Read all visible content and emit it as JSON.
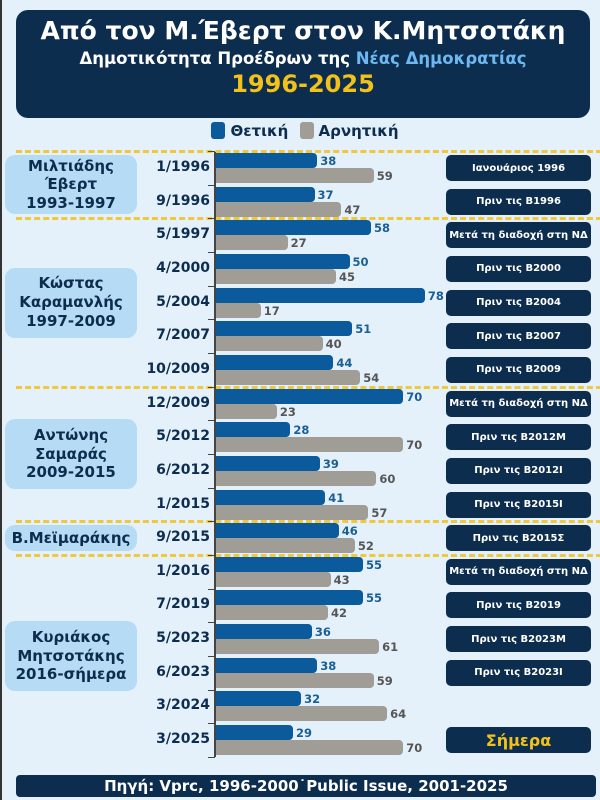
{
  "header": {
    "title": "Από τον Μ.Έβερτ στον Κ.Μητσοτάκη",
    "subtitle_prefix": "Δημοτικότητα Προέδρων της ",
    "subtitle_highlight": "Νέας Δημοκρατίας",
    "years": "1996-2025"
  },
  "footer": {
    "source": "Πηγή: Vprc, 1996-2000˙Public Issue, 2001-2025"
  },
  "colors": {
    "positive": "#0a5a9c",
    "negative": "#a09d97",
    "accent": "#f2c21b",
    "navy": "#0d2d4f"
  },
  "chart_data": {
    "type": "bar",
    "orientation": "horizontal",
    "grid": false,
    "legend_placement": "top",
    "title": "Από τον Μ.Έβερτ στον Κ.Μητσοτάκη",
    "categories": [
      "1/1996",
      "9/1996",
      "5/1997",
      "4/2000",
      "5/2004",
      "7/2007",
      "10/2009",
      "12/2009",
      "5/2012",
      "6/2012",
      "1/2015",
      "9/2015",
      "1/2016",
      "7/2019",
      "5/2023",
      "6/2023",
      "3/2024",
      "3/2025"
    ],
    "series": [
      {
        "name": "Θετική",
        "color": "#0a5a9c",
        "values": [
          38,
          37,
          58,
          50,
          78,
          51,
          44,
          70,
          28,
          39,
          41,
          46,
          55,
          55,
          36,
          38,
          32,
          29
        ]
      },
      {
        "name": "Αρνητική",
        "color": "#a09d97",
        "values": [
          59,
          47,
          27,
          45,
          17,
          40,
          54,
          23,
          70,
          60,
          57,
          52,
          43,
          42,
          61,
          59,
          64,
          70
        ]
      }
    ],
    "notes": [
      "Ιανουάριος 1996",
      "Πριν τις Β1996",
      "Μετά τη διαδοχή στη ΝΔ",
      "Πριν τις Β2000",
      "Πριν τις Β2004",
      "Πριν τις Β2007",
      "Πριν τις Β2009",
      "Μετά τη διαδοχή στη ΝΔ",
      "Πριν τις Β2012Μ",
      "Πριν τις Β2012Ι",
      "Πριν τις Β2015Ι",
      "Πριν τις Β2015Σ",
      "Μετά τη διαδοχή στη ΝΔ",
      "Πριν τις Β2019",
      "Πριν τις Β2023Μ",
      "Πριν τις Β2023Ι",
      null,
      "Σήμερα"
    ],
    "groups": [
      {
        "label": "Μιλτιάδης\nΈβερτ\n1993-1997",
        "from": 0,
        "to": 1
      },
      {
        "label": "Κώστας\nΚαραμανλής\n1997-2009",
        "from": 2,
        "to": 6
      },
      {
        "label": "Αντώνης\nΣαμαράς\n2009-2015",
        "from": 7,
        "to": 10
      },
      {
        "label": "Β.Μεϊμαράκης",
        "from": 11,
        "to": 11
      },
      {
        "label": "Κυριάκος\nΜητσοτάκης\n2016-σήμερα",
        "from": 12,
        "to": 17
      }
    ]
  }
}
